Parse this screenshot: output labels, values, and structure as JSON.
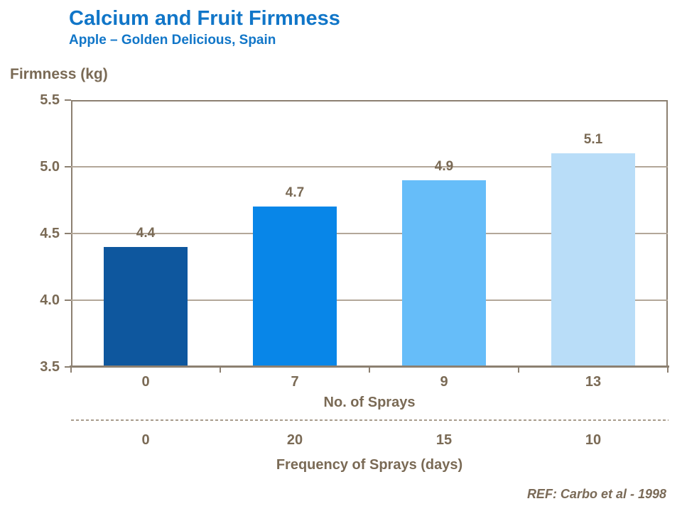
{
  "header": {
    "title": "Calcium and Fruit Firmness",
    "subtitle": "Apple – Golden Delicious, Spain"
  },
  "reference": "REF: Carbo et al - 1998",
  "colors": {
    "title_blue": "#1176C8",
    "label_brown": "#7A6A55",
    "axis_line": "#8C8071",
    "gridline": "#B3A799",
    "dashed_separator": "#A89C8C",
    "background": "#FFFFFF"
  },
  "chart_data": {
    "type": "bar",
    "title": "Calcium and Fruit Firmness",
    "subtitle": "Apple – Golden Delicious, Spain",
    "ylabel": "Firmness (kg)",
    "xlabel": "No. of Sprays",
    "secondary_xlabel": "Frequency of Sprays (days)",
    "categories": [
      "0",
      "7",
      "9",
      "13"
    ],
    "values": [
      4.4,
      4.7,
      4.9,
      5.1
    ],
    "value_labels": [
      "4.4",
      "4.7",
      "4.9",
      "5.1"
    ],
    "secondary_categories": [
      "0",
      "20",
      "15",
      "10"
    ],
    "bar_colors": [
      "#0E579E",
      "#0886E8",
      "#66BDF9",
      "#B9DDF8"
    ],
    "ylim": [
      3.5,
      5.5
    ],
    "yticks": [
      3.5,
      4.0,
      4.5,
      5.0,
      5.5
    ],
    "ytick_labels": [
      "3.5",
      "4.0",
      "4.5",
      "5.0",
      "5.5"
    ],
    "grid": true,
    "legend": false,
    "annotation": "REF: Carbo et al - 1998"
  }
}
